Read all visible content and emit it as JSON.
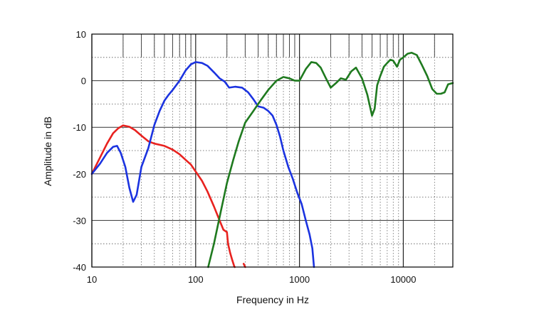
{
  "chart_data": {
    "type": "line",
    "xlabel": "Frequency  in Hz",
    "ylabel": "Amplitude in dB",
    "x_scale": "log",
    "xlim": [
      10,
      30000
    ],
    "ylim": [
      -40,
      10
    ],
    "x_ticks": [
      10,
      100,
      1000,
      10000
    ],
    "x_tick_labels": [
      "10",
      "100",
      "1000",
      "10000"
    ],
    "y_ticks": [
      10,
      0,
      -10,
      -20,
      -30,
      -40
    ],
    "y_tick_labels": [
      "10",
      "0",
      "-10",
      "-20",
      "-30",
      "-40"
    ],
    "grid": true,
    "series": [
      {
        "color": "#e8221f",
        "points": [
          [
            10,
            -20
          ],
          [
            12,
            -16.5
          ],
          [
            14,
            -13.5
          ],
          [
            16,
            -11.3
          ],
          [
            18,
            -10.2
          ],
          [
            20,
            -9.6
          ],
          [
            23,
            -9.9
          ],
          [
            26,
            -10.6
          ],
          [
            30,
            -11.8
          ],
          [
            35,
            -13
          ],
          [
            40,
            -13.5
          ],
          [
            50,
            -14
          ],
          [
            60,
            -14.8
          ],
          [
            70,
            -15.8
          ],
          [
            80,
            -17
          ],
          [
            90,
            -18
          ],
          [
            100,
            -19.5
          ],
          [
            115,
            -21.5
          ],
          [
            130,
            -23.8
          ],
          [
            150,
            -27
          ],
          [
            170,
            -30
          ],
          [
            185,
            -32
          ],
          [
            200,
            -32.5
          ],
          [
            205,
            -35
          ],
          [
            215,
            -37
          ],
          [
            225,
            -38.5
          ],
          [
            235,
            -39.8
          ],
          [
            238,
            -40
          ]
        ]
      },
      {
        "color": "#e8221f",
        "points": [
          [
            290,
            -39.3
          ],
          [
            300,
            -40
          ]
        ]
      },
      {
        "color": "#1b33e0",
        "points": [
          [
            10,
            -20
          ],
          [
            12,
            -17.8
          ],
          [
            14,
            -15.5
          ],
          [
            16,
            -14.2
          ],
          [
            17.5,
            -14
          ],
          [
            19,
            -15.5
          ],
          [
            21,
            -18.5
          ],
          [
            23,
            -23
          ],
          [
            25,
            -26
          ],
          [
            27,
            -24.5
          ],
          [
            30,
            -18.5
          ],
          [
            35,
            -14.5
          ],
          [
            40,
            -9.5
          ],
          [
            45,
            -6.5
          ],
          [
            50,
            -4.3
          ],
          [
            55,
            -3
          ],
          [
            60,
            -2
          ],
          [
            70,
            0
          ],
          [
            80,
            2.2
          ],
          [
            90,
            3.5
          ],
          [
            100,
            4
          ],
          [
            115,
            3.8
          ],
          [
            130,
            3.2
          ],
          [
            150,
            1.8
          ],
          [
            170,
            0.5
          ],
          [
            190,
            -0.2
          ],
          [
            210,
            -1.5
          ],
          [
            240,
            -1.3
          ],
          [
            280,
            -1.5
          ],
          [
            320,
            -2.5
          ],
          [
            360,
            -4
          ],
          [
            400,
            -5.5
          ],
          [
            450,
            -5.8
          ],
          [
            500,
            -6.5
          ],
          [
            550,
            -7.5
          ],
          [
            600,
            -9.5
          ],
          [
            650,
            -12
          ],
          [
            700,
            -15
          ],
          [
            780,
            -18.5
          ],
          [
            860,
            -21
          ],
          [
            950,
            -24
          ],
          [
            1050,
            -26.5
          ],
          [
            1150,
            -30
          ],
          [
            1250,
            -33
          ],
          [
            1330,
            -36
          ],
          [
            1380,
            -40
          ]
        ]
      },
      {
        "color": "#1f7a1f",
        "points": [
          [
            132,
            -40
          ],
          [
            150,
            -35
          ],
          [
            175,
            -28
          ],
          [
            200,
            -22
          ],
          [
            230,
            -17
          ],
          [
            260,
            -13
          ],
          [
            300,
            -9
          ],
          [
            360,
            -6.5
          ],
          [
            430,
            -4
          ],
          [
            500,
            -2
          ],
          [
            600,
            0
          ],
          [
            700,
            0.8
          ],
          [
            800,
            0.5
          ],
          [
            900,
            0
          ],
          [
            1000,
            0
          ],
          [
            1150,
            2.5
          ],
          [
            1300,
            4
          ],
          [
            1450,
            3.8
          ],
          [
            1600,
            2.8
          ],
          [
            1800,
            0.5
          ],
          [
            2000,
            -1.5
          ],
          [
            2250,
            -0.5
          ],
          [
            2500,
            0.5
          ],
          [
            2800,
            0.2
          ],
          [
            3150,
            2
          ],
          [
            3500,
            2.8
          ],
          [
            4000,
            0.5
          ],
          [
            4500,
            -3
          ],
          [
            5000,
            -7.5
          ],
          [
            5300,
            -6
          ],
          [
            5600,
            -1
          ],
          [
            6000,
            1
          ],
          [
            6500,
            3
          ],
          [
            7000,
            3.8
          ],
          [
            7500,
            4.5
          ],
          [
            8000,
            4.3
          ],
          [
            8700,
            3
          ],
          [
            9300,
            4.5
          ],
          [
            10000,
            5
          ],
          [
            11000,
            5.8
          ],
          [
            12000,
            6
          ],
          [
            13500,
            5.5
          ],
          [
            15000,
            3.5
          ],
          [
            17000,
            1
          ],
          [
            19000,
            -1.8
          ],
          [
            21000,
            -2.8
          ],
          [
            23000,
            -2.8
          ],
          [
            25000,
            -2.5
          ],
          [
            27000,
            -0.8
          ],
          [
            30000,
            -0.5
          ]
        ]
      }
    ]
  }
}
